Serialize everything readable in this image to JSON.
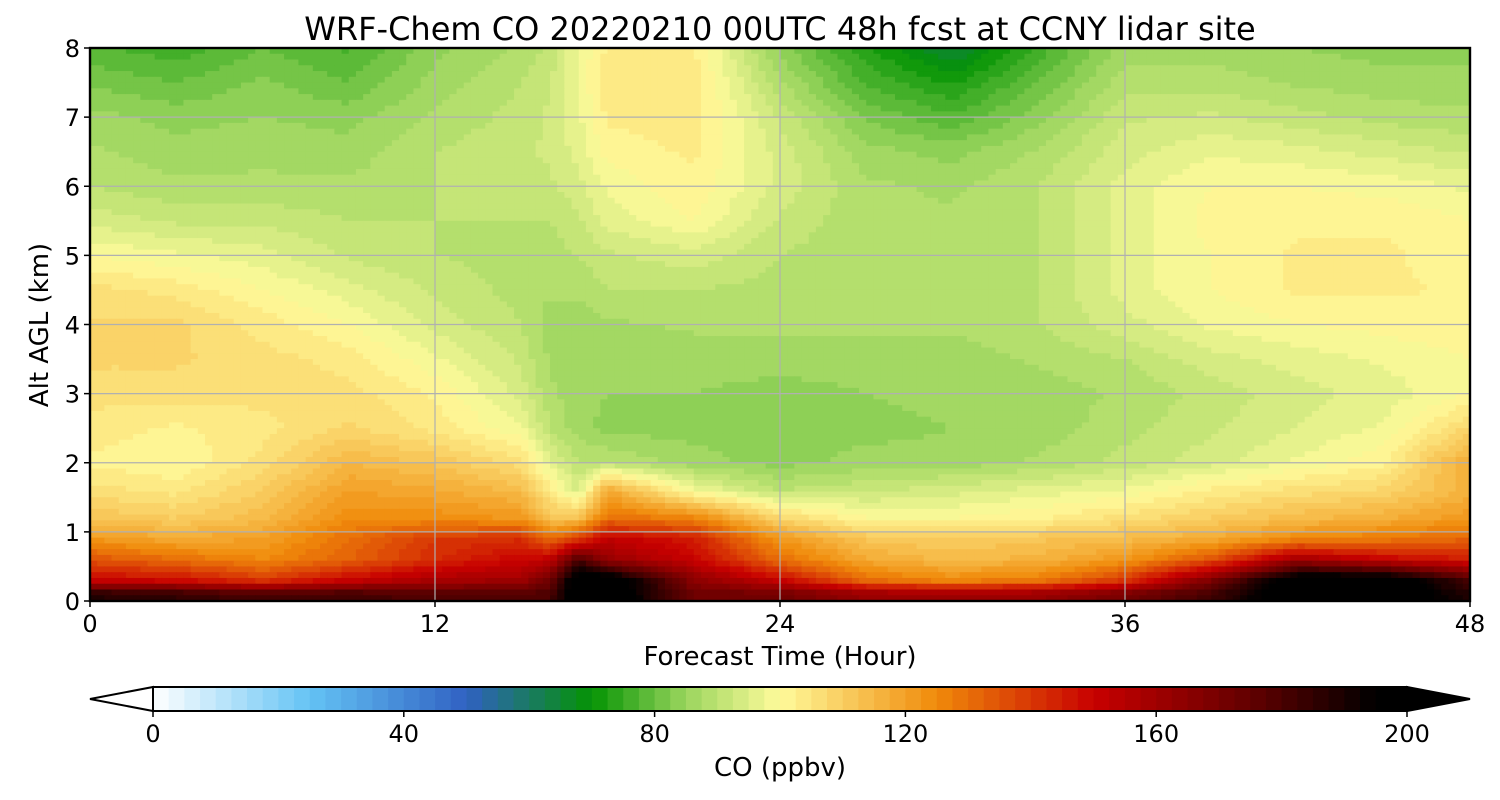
{
  "chart_data": {
    "type": "heatmap",
    "title": "WRF-Chem CO  20220210 00UTC 48h fcst at CCNY lidar site",
    "xlabel": "Forecast Time (Hour)",
    "ylabel": "Alt AGL (km)",
    "xlim": [
      0,
      48
    ],
    "ylim": [
      0,
      8
    ],
    "xticks": [
      0,
      12,
      24,
      36,
      48
    ],
    "yticks": [
      0,
      1,
      2,
      3,
      4,
      5,
      6,
      7,
      8
    ],
    "grid": true,
    "grid_color": "#b0b0b0",
    "x": [
      0,
      3,
      6,
      9,
      12,
      15,
      16,
      17,
      18,
      21,
      24,
      27,
      30,
      33,
      36,
      39,
      42,
      45,
      48
    ],
    "y": [
      0.1,
      0.3,
      0.6,
      0.9,
      1.2,
      1.6,
      2.0,
      2.5,
      3.0,
      3.5,
      4.0,
      4.5,
      5.0,
      5.5,
      6.0,
      6.5,
      7.0,
      7.5,
      8.0
    ],
    "values": [
      [
        188,
        185,
        180,
        182,
        178,
        178,
        180,
        205,
        205,
        172,
        172,
        162,
        160,
        162,
        170,
        182,
        205,
        205,
        188
      ],
      [
        150,
        148,
        140,
        150,
        158,
        160,
        172,
        205,
        205,
        165,
        150,
        130,
        125,
        128,
        140,
        168,
        205,
        205,
        180
      ],
      [
        135,
        130,
        125,
        132,
        142,
        150,
        152,
        180,
        162,
        150,
        130,
        118,
        114,
        116,
        122,
        135,
        160,
        150,
        145
      ],
      [
        122,
        118,
        120,
        130,
        140,
        142,
        130,
        140,
        152,
        145,
        122,
        112,
        110,
        112,
        114,
        118,
        125,
        128,
        132
      ],
      [
        112,
        110,
        114,
        124,
        124,
        122,
        112,
        112,
        130,
        126,
        108,
        100,
        100,
        102,
        106,
        110,
        114,
        117,
        122
      ],
      [
        106,
        104,
        110,
        120,
        118,
        114,
        104,
        94,
        118,
        98,
        90,
        92,
        94,
        96,
        98,
        103,
        106,
        108,
        116
      ],
      [
        102,
        100,
        106,
        115,
        112,
        106,
        96,
        90,
        90,
        86,
        84,
        86,
        86,
        88,
        91,
        94,
        98,
        102,
        118
      ],
      [
        104,
        102,
        104,
        108,
        104,
        98,
        90,
        86,
        84,
        84,
        84,
        84,
        85,
        86,
        89,
        92,
        95,
        98,
        108
      ],
      [
        106,
        106,
        106,
        106,
        102,
        94,
        88,
        86,
        85,
        85,
        84,
        85,
        86,
        86,
        88,
        91,
        94,
        96,
        100
      ],
      [
        108,
        108,
        106,
        104,
        98,
        92,
        87,
        86,
        86,
        86,
        86,
        86,
        86,
        88,
        90,
        94,
        96,
        98,
        100
      ],
      [
        108,
        108,
        104,
        100,
        94,
        90,
        86,
        86,
        87,
        88,
        88,
        88,
        88,
        90,
        94,
        98,
        100,
        101,
        102
      ],
      [
        106,
        104,
        100,
        96,
        92,
        89,
        88,
        88,
        90,
        90,
        89,
        88,
        88,
        90,
        96,
        100,
        103,
        103,
        102
      ],
      [
        100,
        98,
        96,
        92,
        90,
        89,
        89,
        90,
        92,
        94,
        90,
        88,
        88,
        90,
        96,
        100,
        103,
        103,
        101
      ],
      [
        94,
        92,
        92,
        90,
        90,
        90,
        90,
        92,
        96,
        100,
        92,
        88,
        88,
        90,
        96,
        101,
        102,
        102,
        100
      ],
      [
        90,
        88,
        88,
        88,
        90,
        91,
        92,
        94,
        98,
        102,
        94,
        88,
        87,
        90,
        96,
        100,
        100,
        99,
        97
      ],
      [
        88,
        86,
        87,
        86,
        90,
        92,
        93,
        96,
        101,
        103,
        94,
        86,
        84,
        88,
        94,
        97,
        96,
        94,
        92
      ],
      [
        86,
        84,
        85,
        84,
        88,
        91,
        93,
        97,
        103,
        104,
        92,
        82,
        78,
        84,
        92,
        93,
        91,
        89,
        88
      ],
      [
        82,
        80,
        83,
        80,
        86,
        90,
        92,
        98,
        104,
        104,
        88,
        77,
        72,
        80,
        89,
        89,
        87,
        86,
        86
      ],
      [
        78,
        76,
        80,
        77,
        84,
        88,
        91,
        98,
        103,
        103,
        84,
        73,
        64,
        76,
        86,
        86,
        85,
        84,
        84
      ]
    ],
    "colorbar": {
      "label": "CO  (ppbv)",
      "min": 0,
      "max": 200,
      "ticks": [
        0,
        40,
        80,
        120,
        160,
        200
      ],
      "extend": "both",
      "orientation": "horizontal",
      "stops": [
        {
          "v": 0,
          "color": "#ffffff"
        },
        {
          "v": 25,
          "color": "#64c3f4"
        },
        {
          "v": 50,
          "color": "#3061c2"
        },
        {
          "v": 70,
          "color": "#049303"
        },
        {
          "v": 85,
          "color": "#9bd55e"
        },
        {
          "v": 100,
          "color": "#fffb9b"
        },
        {
          "v": 125,
          "color": "#f08a0a"
        },
        {
          "v": 150,
          "color": "#c80000"
        },
        {
          "v": 175,
          "color": "#620000"
        },
        {
          "v": 195,
          "color": "#000000"
        },
        {
          "v": 200,
          "color": "#000000"
        }
      ]
    }
  }
}
